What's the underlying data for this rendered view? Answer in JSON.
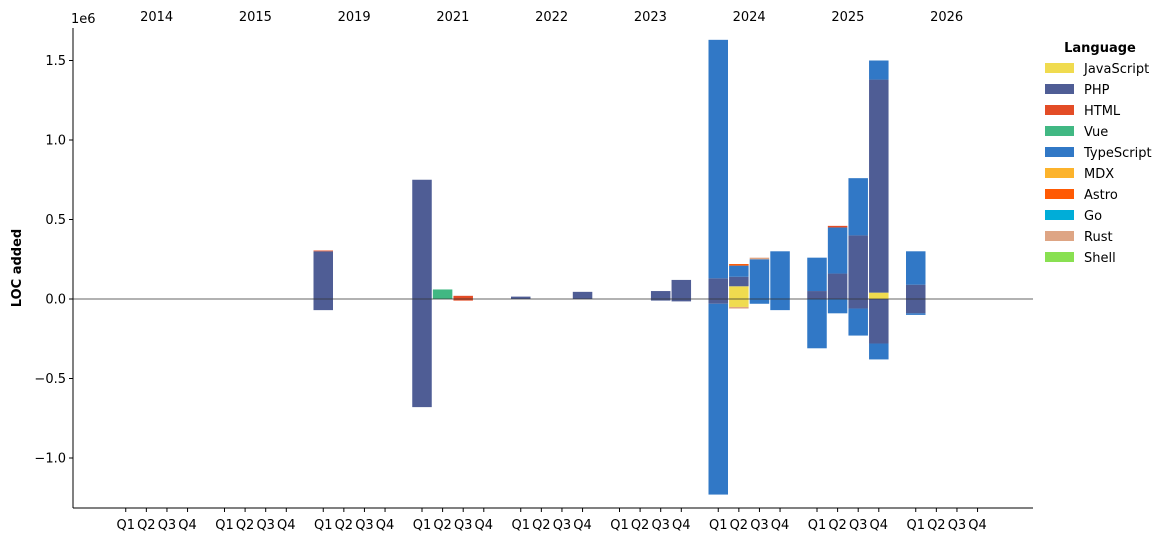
{
  "chart_data": {
    "type": "bar",
    "stacked": true,
    "ylabel": "LOC added",
    "y_offset_label": "1e6",
    "ylim": [
      -1.3,
      1.72
    ],
    "yticks": [
      -1.0,
      -0.5,
      0.0,
      0.5,
      1.0,
      1.5
    ],
    "ytick_labels": [
      "−1.0",
      "−0.5",
      "0.0",
      "0.5",
      "1.0",
      "1.5"
    ],
    "years": [
      "2014",
      "2015",
      "2019",
      "2021",
      "2022",
      "2023",
      "2024",
      "2025",
      "2026"
    ],
    "quarter_labels": [
      "Q1",
      "Q2",
      "Q3",
      "Q4"
    ],
    "legend": {
      "title": "Language",
      "placement": "right",
      "items": [
        {
          "name": "JavaScript",
          "color": "#f0db4f"
        },
        {
          "name": "PHP",
          "color": "#4f5d95"
        },
        {
          "name": "HTML",
          "color": "#e34c26"
        },
        {
          "name": "Vue",
          "color": "#41b883"
        },
        {
          "name": "TypeScript",
          "color": "#3178c6"
        },
        {
          "name": "MDX",
          "color": "#fcb32c"
        },
        {
          "name": "Astro",
          "color": "#ff5a03"
        },
        {
          "name": "Go",
          "color": "#00add8"
        },
        {
          "name": "Rust",
          "color": "#dea584"
        },
        {
          "name": "Shell",
          "color": "#89e051"
        }
      ]
    },
    "bars": [
      {
        "year": "2019",
        "quarter": "Q1",
        "segments": [
          {
            "lang": "PHP",
            "y0": 0,
            "y1": 0.3
          },
          {
            "lang": "HTML",
            "y0": 0.3,
            "y1": 0.305
          },
          {
            "lang": "PHP",
            "y0": -0.07,
            "y1": 0
          }
        ]
      },
      {
        "year": "2021",
        "quarter": "Q1",
        "segments": [
          {
            "lang": "PHP",
            "y0": 0,
            "y1": 0.75
          },
          {
            "lang": "PHP",
            "y0": -0.68,
            "y1": 0
          }
        ]
      },
      {
        "year": "2021",
        "quarter": "Q2",
        "segments": [
          {
            "lang": "Vue",
            "y0": 0,
            "y1": 0.06
          }
        ]
      },
      {
        "year": "2021",
        "quarter": "Q3",
        "segments": [
          {
            "lang": "HTML",
            "y0": 0,
            "y1": 0.02
          },
          {
            "lang": "HTML",
            "y0": -0.01,
            "y1": 0
          }
        ]
      },
      {
        "year": "2022",
        "quarter": "Q1",
        "segments": [
          {
            "lang": "PHP",
            "y0": 0,
            "y1": 0.015
          }
        ]
      },
      {
        "year": "2022",
        "quarter": "Q4",
        "segments": [
          {
            "lang": "PHP",
            "y0": 0,
            "y1": 0.045
          }
        ]
      },
      {
        "year": "2023",
        "quarter": "Q3",
        "segments": [
          {
            "lang": "PHP",
            "y0": 0,
            "y1": 0.05
          },
          {
            "lang": "PHP",
            "y0": -0.01,
            "y1": 0
          }
        ]
      },
      {
        "year": "2023",
        "quarter": "Q4",
        "segments": [
          {
            "lang": "PHP",
            "y0": 0,
            "y1": 0.12
          },
          {
            "lang": "PHP",
            "y0": -0.015,
            "y1": 0
          }
        ]
      },
      {
        "year": "2024",
        "quarter": "Q1",
        "segments": [
          {
            "lang": "PHP",
            "y0": 0,
            "y1": 0.13
          },
          {
            "lang": "TypeScript",
            "y0": 0.13,
            "y1": 1.63
          },
          {
            "lang": "PHP",
            "y0": -0.03,
            "y1": 0
          },
          {
            "lang": "TypeScript",
            "y0": -1.23,
            "y1": -0.03
          }
        ]
      },
      {
        "year": "2024",
        "quarter": "Q2",
        "segments": [
          {
            "lang": "JavaScript",
            "y0": 0,
            "y1": 0.08
          },
          {
            "lang": "PHP",
            "y0": 0.08,
            "y1": 0.14
          },
          {
            "lang": "TypeScript",
            "y0": 0.14,
            "y1": 0.21
          },
          {
            "lang": "Astro",
            "y0": 0.21,
            "y1": 0.22
          },
          {
            "lang": "JavaScript",
            "y0": -0.05,
            "y1": 0
          },
          {
            "lang": "Rust",
            "y0": -0.06,
            "y1": -0.05
          }
        ]
      },
      {
        "year": "2024",
        "quarter": "Q3",
        "segments": [
          {
            "lang": "TypeScript",
            "y0": 0,
            "y1": 0.25
          },
          {
            "lang": "Rust",
            "y0": 0.25,
            "y1": 0.26
          },
          {
            "lang": "TypeScript",
            "y0": -0.03,
            "y1": 0
          }
        ]
      },
      {
        "year": "2024",
        "quarter": "Q4",
        "segments": [
          {
            "lang": "TypeScript",
            "y0": 0,
            "y1": 0.3
          },
          {
            "lang": "TypeScript",
            "y0": -0.07,
            "y1": 0
          }
        ]
      },
      {
        "year": "2025",
        "quarter": "Q1",
        "segments": [
          {
            "lang": "PHP",
            "y0": 0,
            "y1": 0.05
          },
          {
            "lang": "TypeScript",
            "y0": 0.05,
            "y1": 0.26
          },
          {
            "lang": "TypeScript",
            "y0": -0.31,
            "y1": 0
          }
        ]
      },
      {
        "year": "2025",
        "quarter": "Q2",
        "segments": [
          {
            "lang": "PHP",
            "y0": 0,
            "y1": 0.16
          },
          {
            "lang": "TypeScript",
            "y0": 0.16,
            "y1": 0.45
          },
          {
            "lang": "HTML",
            "y0": 0.45,
            "y1": 0.46
          },
          {
            "lang": "TypeScript",
            "y0": -0.09,
            "y1": 0
          }
        ]
      },
      {
        "year": "2025",
        "quarter": "Q3",
        "segments": [
          {
            "lang": "PHP",
            "y0": 0,
            "y1": 0.4
          },
          {
            "lang": "TypeScript",
            "y0": 0.4,
            "y1": 0.76
          },
          {
            "lang": "PHP",
            "y0": -0.06,
            "y1": 0
          },
          {
            "lang": "TypeScript",
            "y0": -0.23,
            "y1": -0.06
          }
        ]
      },
      {
        "year": "2025",
        "quarter": "Q4",
        "segments": [
          {
            "lang": "JavaScript",
            "y0": 0,
            "y1": 0.04
          },
          {
            "lang": "PHP",
            "y0": 0.04,
            "y1": 1.38
          },
          {
            "lang": "TypeScript",
            "y0": 1.38,
            "y1": 1.5
          },
          {
            "lang": "PHP",
            "y0": -0.28,
            "y1": 0
          },
          {
            "lang": "TypeScript",
            "y0": -0.38,
            "y1": -0.28
          }
        ]
      },
      {
        "year": "2026",
        "quarter": "Q1",
        "segments": [
          {
            "lang": "PHP",
            "y0": 0,
            "y1": 0.09
          },
          {
            "lang": "TypeScript",
            "y0": 0.09,
            "y1": 0.3
          },
          {
            "lang": "PHP",
            "y0": -0.09,
            "y1": 0
          },
          {
            "lang": "TypeScript",
            "y0": -0.1,
            "y1": -0.09
          }
        ]
      }
    ]
  }
}
